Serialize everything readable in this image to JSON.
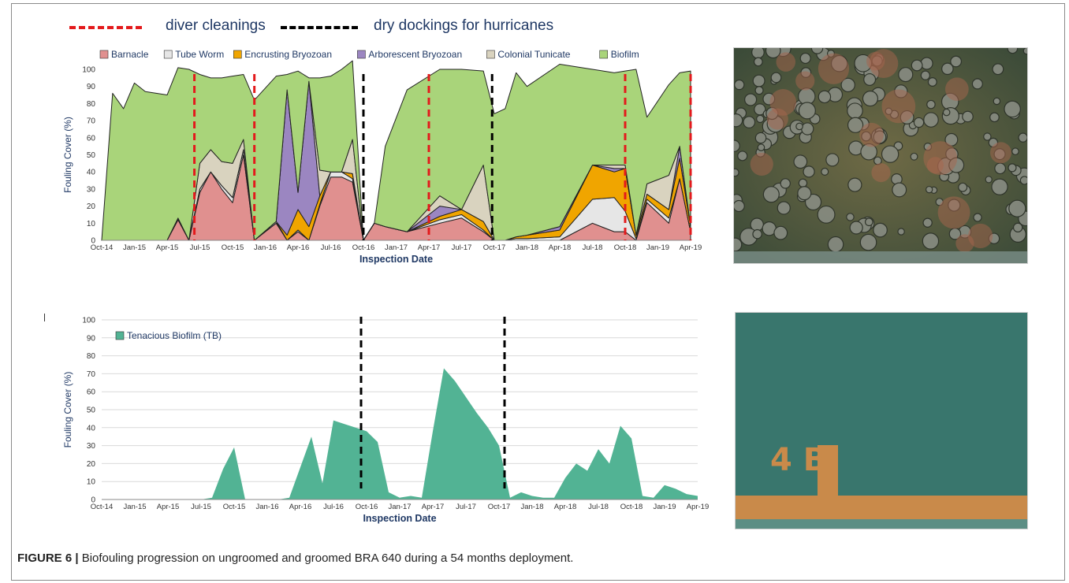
{
  "legend_top": [
    {
      "label": "diver cleanings",
      "color": "#e31a1c"
    },
    {
      "label": "dry dockings for hurricanes",
      "color": "#000000"
    }
  ],
  "caption": {
    "label": "FIGURE 6 |",
    "text": " Biofouling progression on ungroomed and groomed BRA 640 during a 54 months deployment."
  },
  "photos": {
    "top": {
      "name": "ungroomed-panel-photo",
      "colors": [
        "#4b5a3a",
        "#7c6f48",
        "#2f3a2c"
      ]
    },
    "bottom": {
      "name": "groomed-panel-photo",
      "colors": [
        "#3f7d73",
        "#2e6a62",
        "#c98a4a"
      ],
      "text": "4 B"
    }
  },
  "chart_data": [
    {
      "type": "area",
      "stacked": true,
      "ylabel": "Fouling Cover (%)",
      "xlabel": "Inspection Date",
      "ylim": [
        0,
        100
      ],
      "yticks": [
        0,
        10,
        20,
        30,
        40,
        50,
        60,
        70,
        80,
        90,
        100
      ],
      "xticks": [
        "Oct-14",
        "Jan-15",
        "Apr-15",
        "Jul-15",
        "Oct-15",
        "Jan-16",
        "Apr-16",
        "Jul-16",
        "Oct-16",
        "Jan-17",
        "Apr-17",
        "Jul-17",
        "Oct-17",
        "Jan-18",
        "Apr-18",
        "Jul-18",
        "Oct-18",
        "Jan-19",
        "Apr-19"
      ],
      "x_months": [
        0,
        1,
        2,
        3,
        4,
        6,
        7,
        8,
        9,
        10,
        11,
        12,
        13,
        14,
        16,
        17,
        18,
        19,
        20,
        21,
        22,
        23,
        24,
        25,
        26,
        28,
        31,
        33,
        35,
        36,
        37,
        38,
        39,
        42,
        45,
        47,
        48,
        49,
        50,
        52,
        53,
        54
      ],
      "x_dates": [
        "Oct-14",
        "Nov-14",
        "Dec-14",
        "Jan-15",
        "Feb-15",
        "Apr-15",
        "May-15",
        "Jun-15",
        "Jul-15",
        "Aug-15",
        "Sep-15",
        "Oct-15",
        "Nov-15",
        "Dec-15",
        "Feb-16",
        "Mar-16",
        "Apr-16",
        "May-16",
        "Jun-16",
        "Jul-16",
        "Aug-16",
        "Sep-16",
        "Oct-16",
        "Nov-16",
        "Dec-16",
        "Feb-17",
        "May-17",
        "Jul-17",
        "Sep-17",
        "Oct-17",
        "Nov-17",
        "Dec-17",
        "Jan-18",
        "Apr-18",
        "Jul-18",
        "Sep-18",
        "Oct-18",
        "Nov-18",
        "Dec-18",
        "Feb-19",
        "Mar-19",
        "Apr-19"
      ],
      "legend_position": "top",
      "series": [
        {
          "name": "Barnacle",
          "color": "#e0908f",
          "values": [
            0,
            0,
            0,
            0,
            0,
            0,
            12,
            0,
            28,
            40,
            30,
            22,
            50,
            0,
            10,
            0,
            5,
            0,
            20,
            37,
            37,
            34,
            0,
            10,
            8,
            5,
            10,
            13,
            5,
            0,
            0,
            0,
            0,
            0,
            10,
            5,
            5,
            0,
            22,
            10,
            36,
            5
          ]
        },
        {
          "name": "Tube Worm",
          "color": "#e6e6e6",
          "values": [
            0,
            0,
            0,
            0,
            0,
            0,
            1,
            0,
            2,
            0,
            2,
            3,
            3,
            0,
            1,
            0,
            1,
            0,
            1,
            3,
            3,
            2,
            0,
            0,
            0,
            0,
            2,
            2,
            1,
            0,
            0,
            1,
            1,
            2,
            14,
            20,
            12,
            1,
            2,
            3,
            0,
            0
          ]
        },
        {
          "name": "Encrusting Bryozoan",
          "color": "#f0a500",
          "values": [
            0,
            0,
            0,
            0,
            0,
            0,
            0,
            0,
            0,
            0,
            0,
            0,
            0,
            0,
            0,
            3,
            12,
            8,
            5,
            0,
            0,
            3,
            0,
            0,
            0,
            0,
            2,
            3,
            5,
            0,
            0,
            1,
            2,
            4,
            20,
            15,
            25,
            2,
            3,
            5,
            12,
            3
          ]
        },
        {
          "name": "Arborescent Bryozoan",
          "color": "#9b86c1",
          "values": [
            0,
            0,
            0,
            0,
            0,
            0,
            0,
            0,
            0,
            0,
            0,
            0,
            0,
            0,
            0,
            85,
            10,
            85,
            0,
            0,
            0,
            0,
            0,
            0,
            0,
            0,
            6,
            0,
            0,
            0,
            0,
            0,
            0,
            2,
            0,
            2,
            0,
            0,
            0,
            0,
            7,
            0
          ]
        },
        {
          "name": "Colonial Tunicate",
          "color": "#d9d3bf",
          "values": [
            0,
            0,
            0,
            0,
            0,
            0,
            0,
            0,
            15,
            13,
            14,
            20,
            6,
            0,
            0,
            0,
            0,
            0,
            15,
            0,
            0,
            20,
            0,
            0,
            0,
            0,
            6,
            0,
            33,
            0,
            0,
            0,
            0,
            0,
            0,
            2,
            2,
            0,
            6,
            20,
            0,
            0
          ]
        },
        {
          "name": "Biofilm",
          "color": "#a9d47a",
          "values": [
            0,
            86,
            77,
            92,
            87,
            85,
            88,
            100,
            52,
            42,
            49,
            51,
            38,
            82,
            85,
            9,
            71,
            2,
            54,
            56,
            60,
            46,
            0,
            0,
            47,
            83,
            74,
            82,
            55,
            74,
            77,
            96,
            87,
            95,
            56,
            54,
            55,
            97,
            39,
            53,
            43,
            91
          ]
        }
      ],
      "vlines": [
        {
          "x_month": 8.5,
          "kind": "diver cleanings"
        },
        {
          "x_month": 14,
          "kind": "diver cleanings"
        },
        {
          "x_month": 24,
          "kind": "dry dockings for hurricanes"
        },
        {
          "x_month": 30,
          "kind": "diver cleanings"
        },
        {
          "x_month": 35.8,
          "kind": "dry dockings for hurricanes"
        },
        {
          "x_month": 48,
          "kind": "diver cleanings"
        },
        {
          "x_month": 54,
          "kind": "diver cleanings"
        }
      ]
    },
    {
      "type": "area",
      "ylabel": "Fouling Cover (%)",
      "xlabel": "Inspection Date",
      "ylim": [
        0,
        100
      ],
      "yticks": [
        0,
        10,
        20,
        30,
        40,
        50,
        60,
        70,
        80,
        90,
        100
      ],
      "xticks": [
        "Oct-14",
        "Jan-15",
        "Apr-15",
        "Jul-15",
        "Oct-15",
        "Jan-16",
        "Apr-16",
        "Jul-16",
        "Oct-16",
        "Jan-17",
        "Apr-17",
        "Jul-17",
        "Oct-17",
        "Jan-18",
        "Apr-18",
        "Jul-18",
        "Oct-18",
        "Jan-19",
        "Apr-19"
      ],
      "x_months": [
        0,
        1,
        2,
        3,
        4,
        5,
        6,
        7,
        8,
        9,
        10,
        11,
        12,
        13,
        14,
        15,
        16,
        17,
        18,
        19,
        20,
        21,
        22,
        23,
        24,
        25,
        26,
        27,
        28,
        29,
        30,
        31,
        32,
        33,
        34,
        35,
        36,
        37,
        38,
        39,
        40,
        41,
        42,
        43,
        44,
        45,
        46,
        47,
        48,
        49,
        50,
        51,
        52,
        53,
        54
      ],
      "x_dates": [
        "Oct-14",
        "Nov-14",
        "Dec-14",
        "Jan-15",
        "Feb-15",
        "Mar-15",
        "Apr-15",
        "May-15",
        "Jun-15",
        "Jul-15",
        "Aug-15",
        "Sep-15",
        "Oct-15",
        "Nov-15",
        "Dec-15",
        "Jan-16",
        "Feb-16",
        "Mar-16",
        "Apr-16",
        "May-16",
        "Jun-16",
        "Jul-16",
        "Aug-16",
        "Sep-16",
        "Oct-16",
        "Nov-16",
        "Dec-16",
        "Jan-17",
        "Feb-17",
        "Mar-17",
        "Apr-17",
        "May-17",
        "Jun-17",
        "Jul-17",
        "Aug-17",
        "Sep-17",
        "Oct-17",
        "Nov-17",
        "Dec-17",
        "Jan-18",
        "Feb-18",
        "Mar-18",
        "Apr-18",
        "May-18",
        "Jun-18",
        "Jul-18",
        "Aug-18",
        "Sep-18",
        "Oct-18",
        "Nov-18",
        "Dec-18",
        "Jan-19",
        "Feb-19",
        "Mar-19",
        "Apr-19"
      ],
      "legend_position": "top-left",
      "series": [
        {
          "name": "Tenacious Biofilm (TB)",
          "color": "#52b394",
          "values": [
            0,
            0,
            0,
            0,
            0,
            0,
            0,
            0,
            0,
            0,
            1,
            17,
            29,
            0,
            0,
            0,
            0,
            1,
            18,
            35,
            9,
            44,
            42,
            40,
            38,
            32,
            4,
            1,
            2,
            1,
            38,
            73,
            66,
            57,
            48,
            40,
            30,
            1,
            4,
            2,
            1,
            1,
            12,
            20,
            16,
            28,
            20,
            41,
            34,
            2,
            1,
            8,
            6,
            3,
            2
          ]
        }
      ],
      "vlines": [
        {
          "x_month": 23.5,
          "kind": "dry dockings for hurricanes"
        },
        {
          "x_month": 36.5,
          "kind": "dry dockings for hurricanes"
        }
      ]
    }
  ]
}
